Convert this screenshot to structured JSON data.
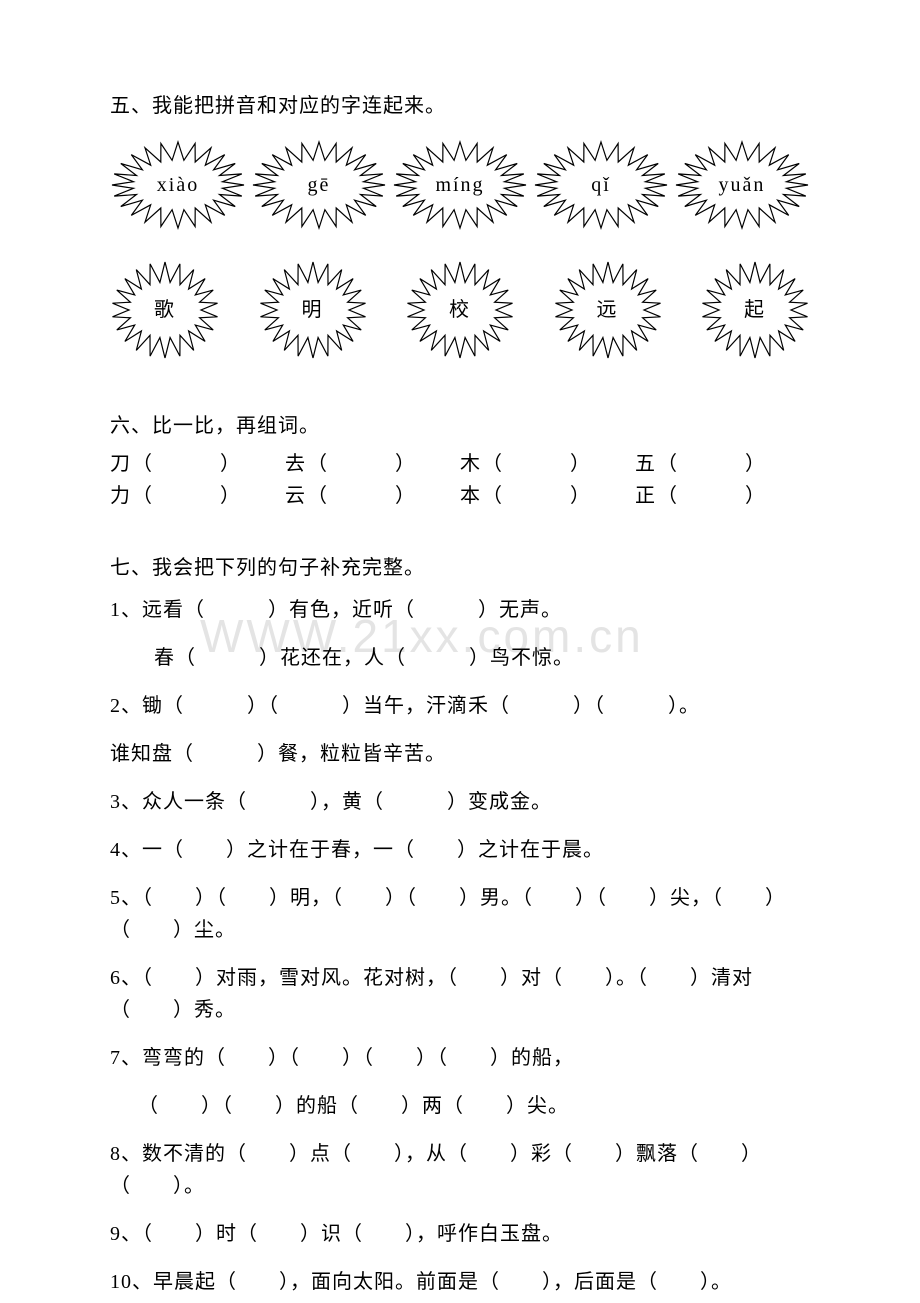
{
  "watermark": "WWW.21xx.com.cn",
  "section5": {
    "title": "五、我能把拼音和对应的字连起来。",
    "row1": [
      "xiào",
      "gē",
      "míng",
      "qǐ",
      "yuǎn"
    ],
    "row2": [
      "歌",
      "明",
      "校",
      "远",
      "起"
    ],
    "burst_stroke": "#000000",
    "burst_fill": "#ffffff",
    "burst1_w": 136,
    "burst1_h": 90,
    "burst2_w": 110,
    "burst2_h": 100
  },
  "section6": {
    "title": "六、比一比，再组词。",
    "rows": [
      [
        "刀（　　　）",
        "去（　　　）",
        "木（　　　）",
        "五（　　　）"
      ],
      [
        "力（　　　）",
        "云（　　　）",
        "本（　　　）",
        "正（　　　）"
      ]
    ]
  },
  "section7": {
    "title": "七、我会把下列的句子补充完整。",
    "q1a": "1、远看（　　　）有色，近听（　　　）无声。",
    "q1b": "春（　　　）花还在，人（　　　）鸟不惊。",
    "q2a": "2、锄（　　　）（　　　）当午，汗滴禾（　　　）（　　　）。",
    "q2b": "谁知盘（　　　）餐，粒粒皆辛苦。",
    "q3": "3、众人一条（　　　），黄（　　　）变成金。",
    "q4": "4、一（　　）之计在于春，一（　　）之计在于晨。",
    "q5": "5、（　　）（　　）明，（　　）（　　）男。（　　）（　　）尖，（　　）（　　）尘。",
    "q6": "6、（　　）对雨，雪对风。花对树，（　　）对（　　）。（　　）清对（　　）秀。",
    "q7a": "7、弯弯的（　　）（　　）（　　）（　　）的船，",
    "q7b": "（　　）（　　）的船（　　）两（　　）尖。",
    "q8": "8、数不清的（　　）点（　　），从（　　）彩（　　）飘落（　　）（　　）。",
    "q9": "9、（　　）时（　　）识（　　），呼作白玉盘。",
    "q10": "10、早晨起（　　），面向太阳。前面是（　　），后面是（　　）。"
  }
}
